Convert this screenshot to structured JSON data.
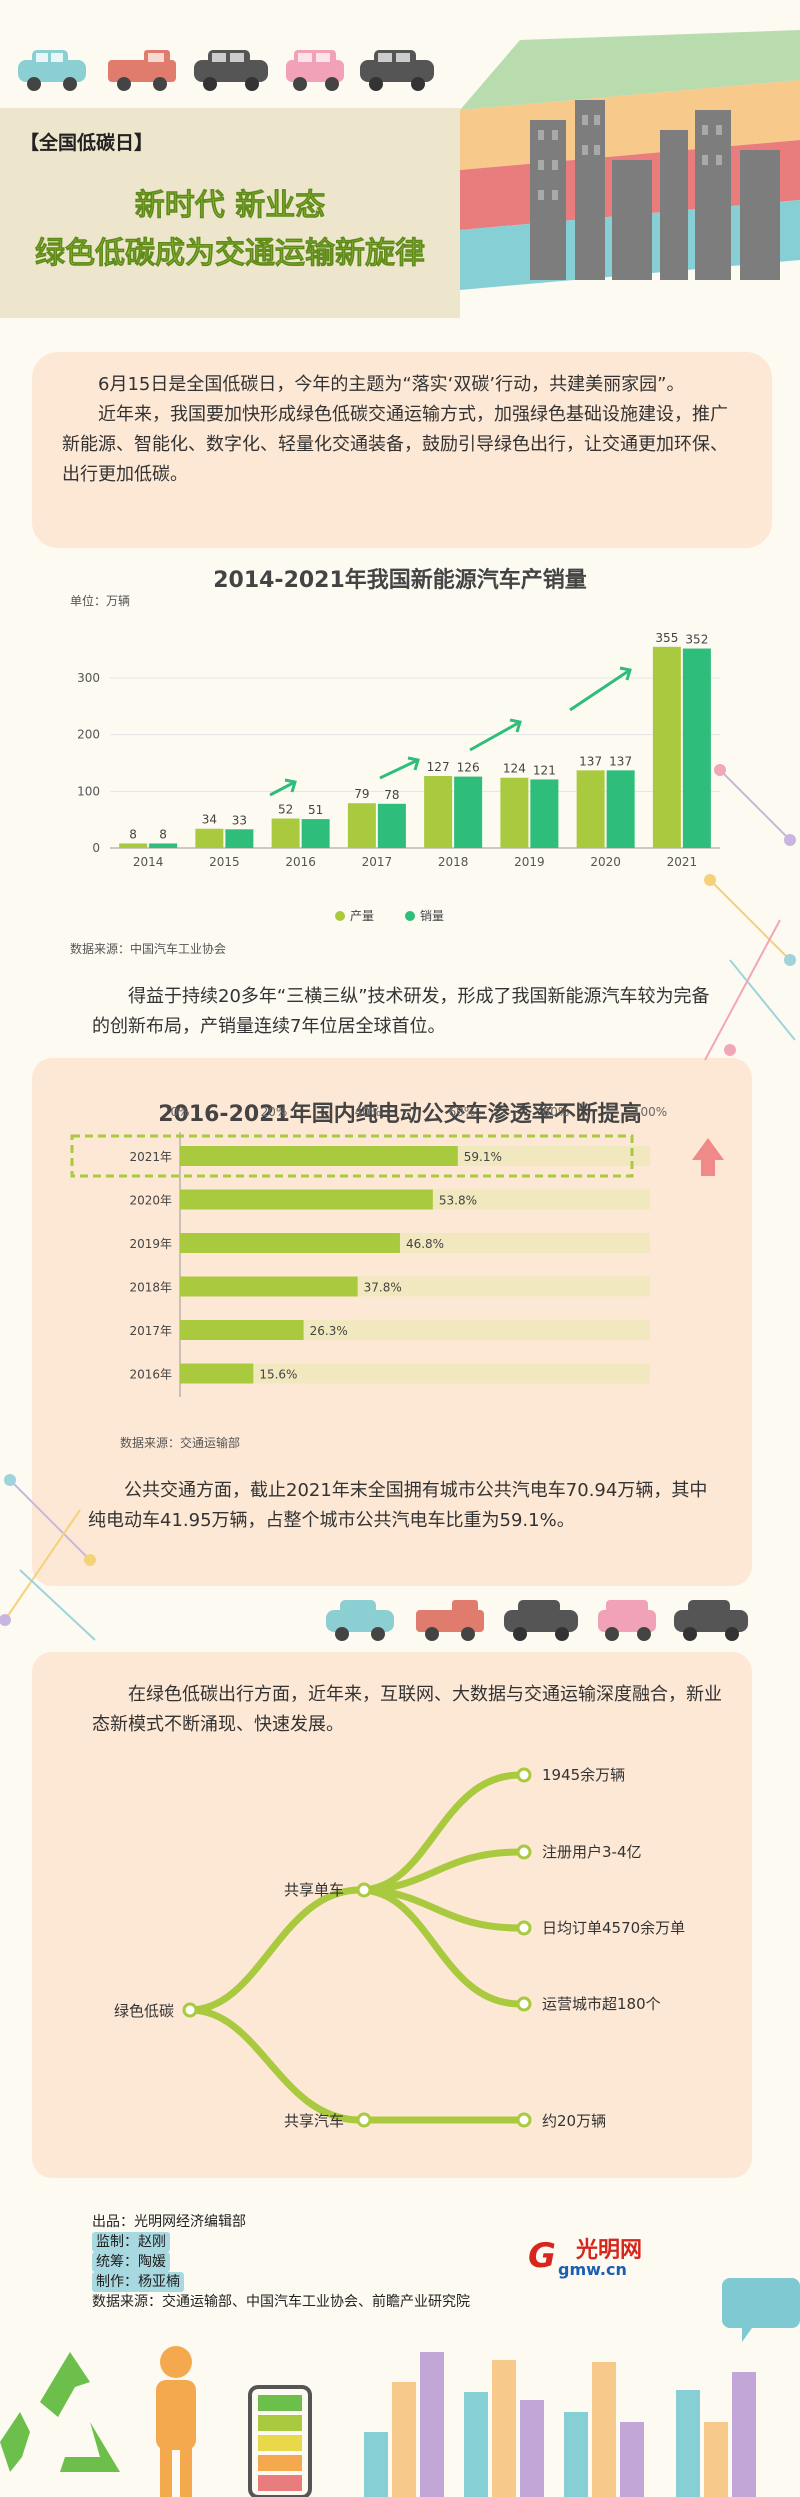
{
  "header": {
    "tag": "【全国低碳日】",
    "title_line1": "新时代 新业态",
    "title_line2": "绿色低碳成为交通运输新旋律"
  },
  "intro": {
    "p1": "6月15日是全国低碳日，今年的主题为“落实‘双碳’行动，共建美丽家园”。",
    "p2": "近年来，我国要加快形成绿色低碳交通运输方式，加强绿色基础设施建设，推广新能源、智能化、数字化、轻量化交通装备，鼓励引导绿色出行，让交通更加环保、出行更加低碳。"
  },
  "chart_data": [
    {
      "type": "bar",
      "title": "2014-2021年我国新能源汽车产销量",
      "unit": "单位：万辆",
      "categories": [
        "2014",
        "2015",
        "2016",
        "2017",
        "2018",
        "2019",
        "2020",
        "2021"
      ],
      "series": [
        {
          "name": "产量",
          "values": [
            8,
            34,
            52,
            79,
            127,
            124,
            137,
            355
          ]
        },
        {
          "name": "销量",
          "values": [
            8,
            33,
            51,
            78,
            126,
            121,
            137,
            352
          ]
        }
      ],
      "yticks": [
        0,
        100,
        200,
        300
      ],
      "ylim": [
        0,
        360
      ],
      "legend_position": "bottom",
      "source": "数据来源：中国汽车工业协会"
    },
    {
      "type": "bar",
      "orientation": "horizontal",
      "title": "2016-2021年国内纯电动公交车渗透率不断提高",
      "categories": [
        "2021年",
        "2020年",
        "2019年",
        "2018年",
        "2017年",
        "2016年"
      ],
      "values": [
        59.1,
        53.8,
        46.8,
        37.8,
        26.3,
        15.6
      ],
      "value_labels": [
        "59.1%",
        "53.8%",
        "46.8%",
        "37.8%",
        "26.3%",
        "15.6%"
      ],
      "xticks": [
        "0%",
        "20%",
        "40%",
        "60%",
        "80%",
        "100%"
      ],
      "xlim": [
        0,
        100
      ],
      "source": "数据来源：交通运输部"
    }
  ],
  "para1": "得益于持续20多年“三横三纵”技术研发，形成了我国新能源汽车较为完备的创新布局，产销量连续7年位居全球首位。",
  "para2": "公共交通方面，截止2021年末全国拥有城市公共汽电车70.94万辆，其中纯电动车41.95万辆，占整个城市公共汽电车比重为59.1%。",
  "para3": "在绿色低碳出行方面，近年来，互联网、大数据与交通运输深度融合，新业态新模式不断涌现、快速发展。",
  "tree": {
    "root": "绿色低碳",
    "branch1": "共享单车",
    "branch2": "共享汽车",
    "leaves1": [
      "1945余万辆",
      "注册用户3-4亿",
      "日均订单4570余万单",
      "运营城市超180个"
    ],
    "leaves2": [
      "约20万辆"
    ]
  },
  "credits": {
    "producer": "出品：光明网经济编辑部",
    "supervisor": "监制：赵刚",
    "coordinator": "统筹：陶媛",
    "maker": "制作：杨亚楠",
    "sources": "数据来源：交通运输部、中国汽车工业协会、前瞻产业研究院"
  },
  "logo": {
    "text": "光明网",
    "sub": "gmw.cn"
  },
  "colors": {
    "green_light": "#a9c93e",
    "green_dark": "#2ebd7a",
    "peach": "#fde8d6",
    "bar_track": "#f2e8bf",
    "title_green": "#8fbd36"
  }
}
